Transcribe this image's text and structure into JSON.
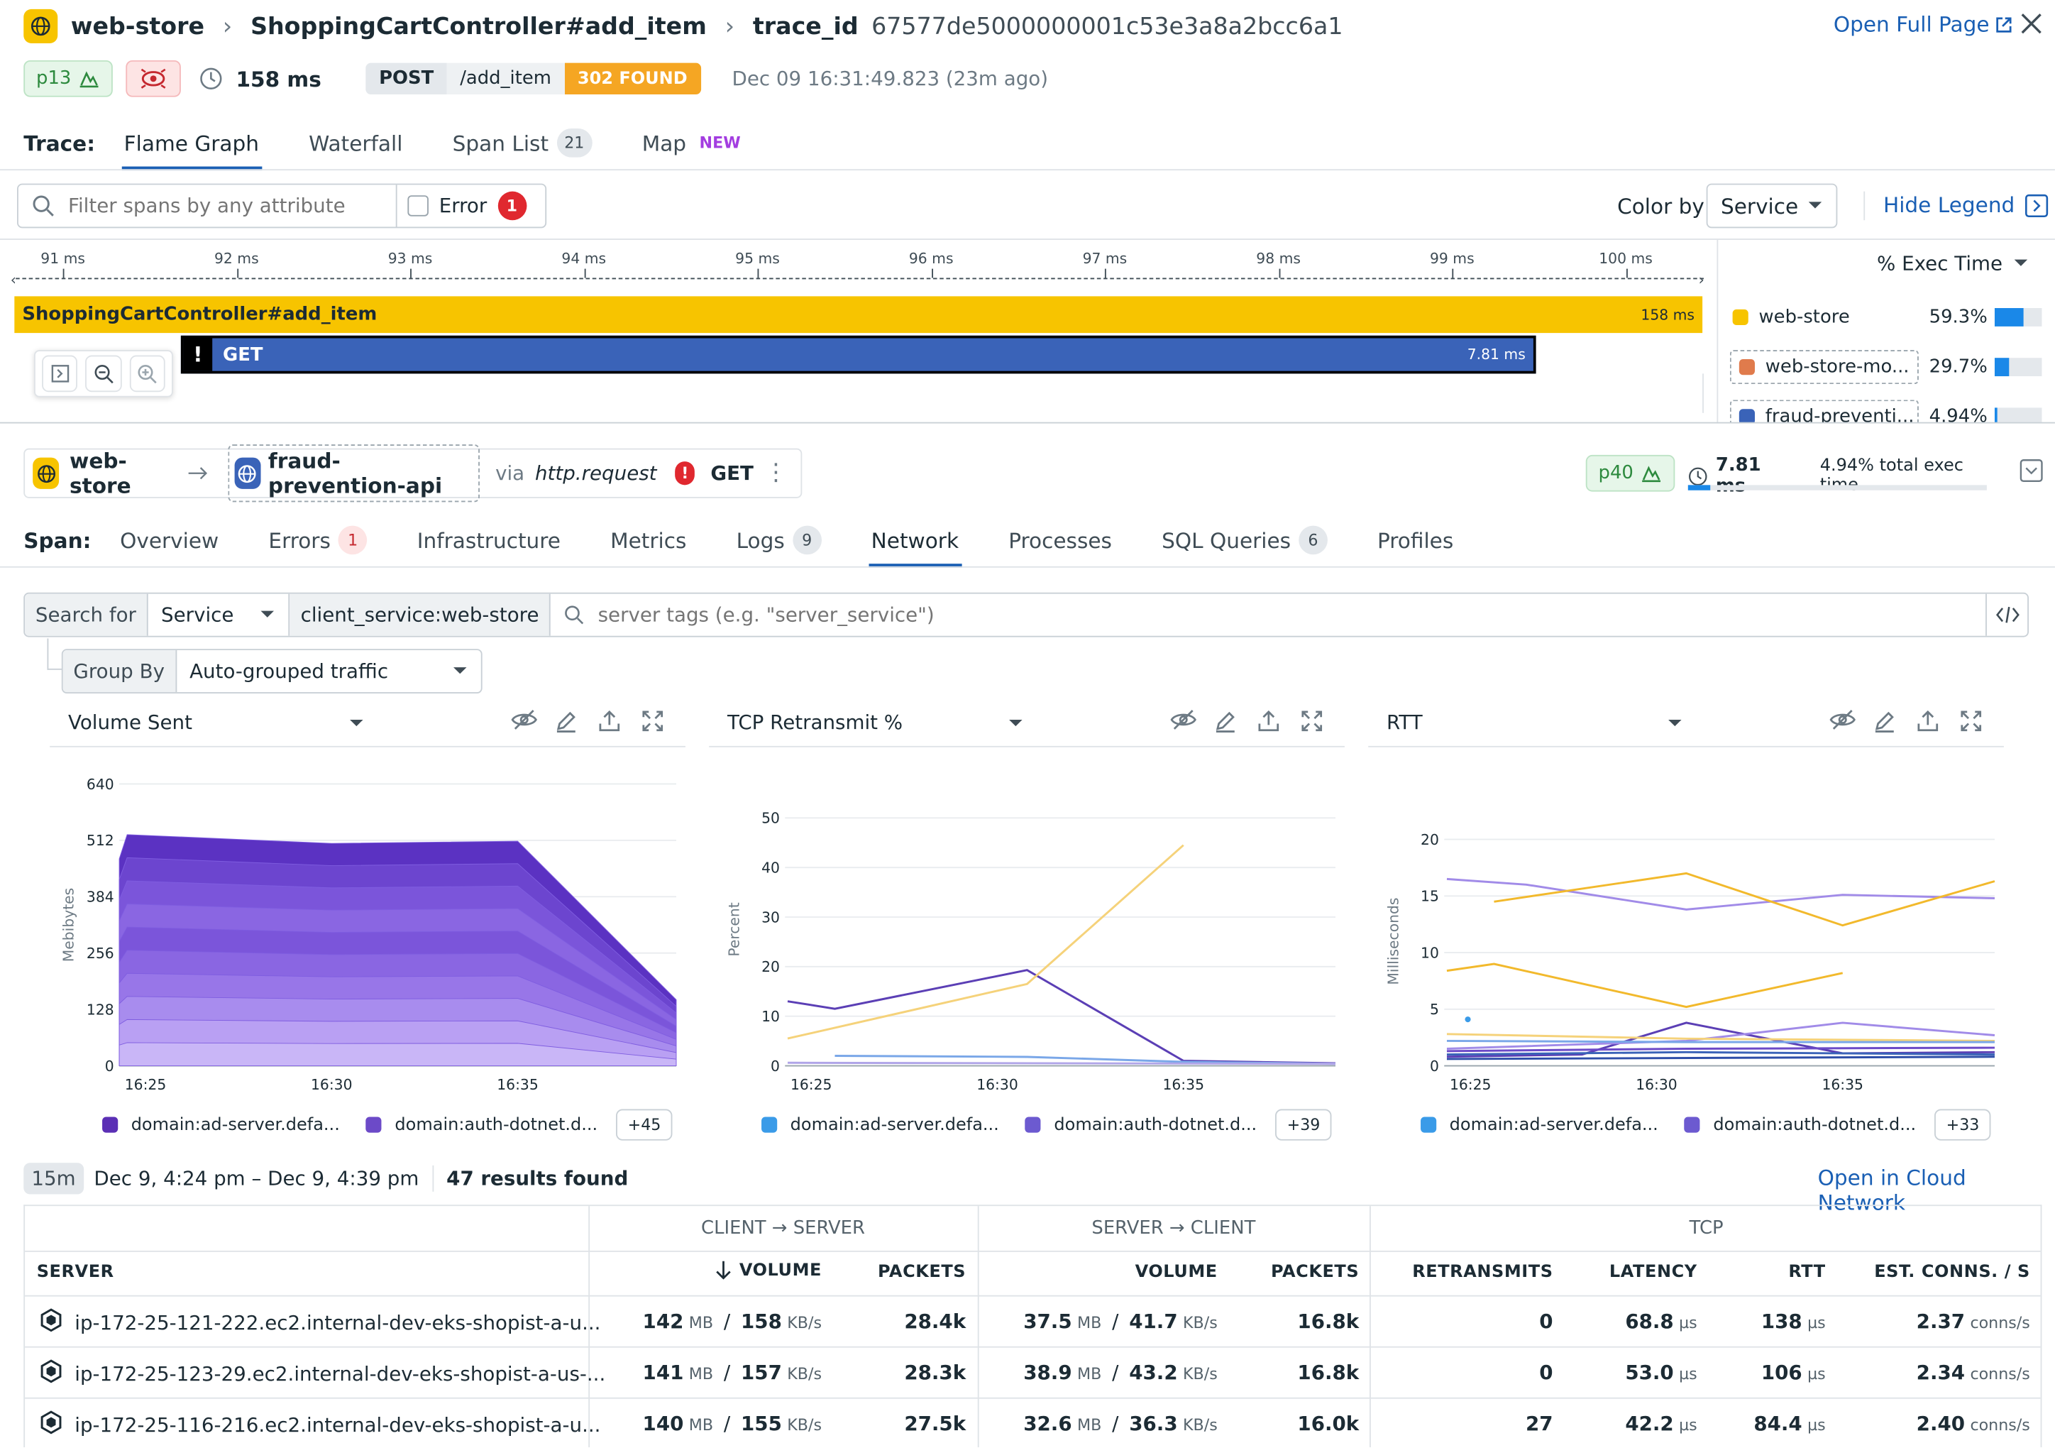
{
  "header": {
    "service": "web-store",
    "resource": "ShoppingCartController#add_item",
    "trace_id_label": "trace_id",
    "trace_id": "67577de5000000001c53e3a8a2bcc6a1",
    "open_full_page": "Open Full Page",
    "percentile": "p13",
    "duration": "158 ms",
    "method": "POST",
    "path": "/add_item",
    "status": "302 FOUND",
    "timestamp": "Dec 09 16:31:49.823 (23m ago)"
  },
  "trace_tabs": {
    "label": "Trace:",
    "items": [
      {
        "label": "Flame Graph",
        "active": true
      },
      {
        "label": "Waterfall"
      },
      {
        "label": "Span List",
        "count": "21"
      },
      {
        "label": "Map",
        "badge": "NEW"
      }
    ]
  },
  "filter": {
    "placeholder": "Filter spans by any attribute",
    "error_label": "Error",
    "error_count": "1",
    "color_by_label": "Color by",
    "color_by_value": "Service",
    "hide_legend": "Hide Legend"
  },
  "timeline": {
    "ticks": [
      "91 ms",
      "92 ms",
      "93 ms",
      "94 ms",
      "95 ms",
      "96 ms",
      "97 ms",
      "98 ms",
      "99 ms",
      "100 ms"
    ],
    "span_root": {
      "label": "ShoppingCartController#add_item",
      "duration": "158 ms",
      "color": "#f7c400"
    },
    "span_child": {
      "label": "GET",
      "duration": "7.81 ms",
      "color": "#3a63b8"
    }
  },
  "legend": {
    "header": "% Exec Time",
    "items": [
      {
        "name": "web-store",
        "pct": "59.3%",
        "color": "#f7c400",
        "fill": 0.593
      },
      {
        "name": "web-store-mo...",
        "pct": "29.7%",
        "color": "#e07b4c",
        "fill": 0.297
      },
      {
        "name": "fraud-preventi...",
        "pct": "4.94%",
        "color": "#3a63b8",
        "fill": 0.0494
      }
    ]
  },
  "span": {
    "from": "web-store",
    "to": "fraud-prevention-api",
    "via": "via",
    "op": "http.request",
    "method": "GET",
    "percentile": "p40",
    "duration": "7.81 ms",
    "exec_time": "4.94% total exec time",
    "exec_fill": 0.0494
  },
  "span_tabs": {
    "label": "Span:",
    "items": [
      {
        "label": "Overview"
      },
      {
        "label": "Errors",
        "count": "1",
        "red": true
      },
      {
        "label": "Infrastructure"
      },
      {
        "label": "Metrics"
      },
      {
        "label": "Logs",
        "count": "9"
      },
      {
        "label": "Network",
        "active": true
      },
      {
        "label": "Processes"
      },
      {
        "label": "SQL Queries",
        "count": "6"
      },
      {
        "label": "Profiles"
      }
    ]
  },
  "search": {
    "label": "Search for",
    "scope": "Service",
    "tag": "client_service:web-store",
    "placeholder": "server tags (e.g. \"server_service\")",
    "group_by_label": "Group By",
    "group_by_value": "Auto-grouped traffic"
  },
  "widgets": [
    {
      "title": "Volume Sent",
      "legend": [
        "domain:ad-server.defa...",
        "domain:auth-dotnet.d..."
      ],
      "more": "+45",
      "legend_colors": [
        "#5b2fb5",
        "#6c4ac8"
      ]
    },
    {
      "title": "TCP Retransmit %",
      "legend": [
        "domain:ad-server.defa...",
        "domain:auth-dotnet.d..."
      ],
      "more": "+39",
      "legend_colors": [
        "#3a9be8",
        "#6c5ad0"
      ]
    },
    {
      "title": "RTT",
      "legend": [
        "domain:ad-server.defa...",
        "domain:auth-dotnet.d..."
      ],
      "more": "+33",
      "legend_colors": [
        "#3a9be8",
        "#6c5ad0"
      ]
    }
  ],
  "chart_data": [
    {
      "type": "area",
      "title": "Volume Sent",
      "ylabel": "Mebibytes",
      "x": [
        "16:23",
        "16:25",
        "16:30",
        "16:35",
        "16:38"
      ],
      "xticks": [
        "16:25",
        "16:30",
        "16:35"
      ],
      "yticks": [
        "0",
        "128",
        "256",
        "384",
        "512",
        "640"
      ],
      "ylim": [
        0,
        640
      ],
      "series": [
        {
          "values": [
            470,
            525,
            505,
            510,
            150
          ]
        }
      ]
    },
    {
      "type": "line",
      "title": "TCP Retransmit %",
      "ylabel": "Percent",
      "xticks": [
        "16:25",
        "16:30",
        "16:35"
      ],
      "yticks": [
        "0",
        "10",
        "20",
        "30",
        "40",
        "50"
      ],
      "ylim": [
        0,
        55
      ],
      "series": [
        {
          "color": "#5b3fb5",
          "points": [
            [
              0,
              13
            ],
            [
              0.1,
              11.5
            ],
            [
              0.58,
              19.3
            ],
            [
              1,
              1
            ],
            [
              1.3,
              0.5
            ]
          ]
        },
        {
          "color": "#f5d27a",
          "points": [
            [
              0,
              5.5
            ],
            [
              0.58,
              16.5
            ],
            [
              1.0,
              44.5
            ]
          ]
        },
        {
          "color": "#7aa7e8",
          "points": [
            [
              0.1,
              2
            ],
            [
              0.58,
              1.8
            ],
            [
              1,
              0.8
            ],
            [
              1.3,
              0.4
            ]
          ]
        },
        {
          "color": "#b0a5e8",
          "points": [
            [
              0,
              0.6
            ],
            [
              1.3,
              0.4
            ]
          ]
        }
      ]
    },
    {
      "type": "line",
      "title": "RTT",
      "ylabel": "Milliseconds",
      "xticks": [
        "16:25",
        "16:30",
        "16:35"
      ],
      "yticks": [
        "0",
        "5",
        "10",
        "15",
        "20"
      ],
      "ylim": [
        0,
        22
      ],
      "series": [
        {
          "color": "#a18be8",
          "points": [
            [
              0,
              16.5
            ],
            [
              0.15,
              16
            ],
            [
              0.58,
              13.8
            ],
            [
              1,
              15.1
            ],
            [
              1.3,
              14.8
            ]
          ]
        },
        {
          "color": "#f2b92c",
          "points": [
            [
              0.1,
              14.5
            ],
            [
              0.58,
              17
            ],
            [
              1,
              12.4
            ],
            [
              1.3,
              16.3
            ]
          ]
        },
        {
          "color": "#f2b92c",
          "points": [
            [
              0,
              8.4
            ],
            [
              0.1,
              9
            ],
            [
              0.58,
              5.2
            ],
            [
              1,
              8.2
            ]
          ]
        },
        {
          "color": "#5b3fb5",
          "points": [
            [
              0,
              0.8
            ],
            [
              0.3,
              1
            ],
            [
              0.58,
              3.8
            ],
            [
              1,
              1.1
            ],
            [
              1.3,
              1.2
            ]
          ]
        },
        {
          "color": "#a18be8",
          "points": [
            [
              0,
              1.5
            ],
            [
              0.58,
              2.2
            ],
            [
              1,
              3.8
            ],
            [
              1.3,
              2.7
            ]
          ]
        },
        {
          "color": "#f5d27a",
          "points": [
            [
              0,
              2.8
            ],
            [
              0.58,
              2.4
            ],
            [
              1.3,
              2.2
            ]
          ]
        },
        {
          "color": "#7aa7e8",
          "points": [
            [
              0,
              2.2
            ],
            [
              0.58,
              2.1
            ],
            [
              1.3,
              2.1
            ]
          ]
        },
        {
          "color": "#3a63b8",
          "points": [
            [
              0,
              1.0
            ],
            [
              0.58,
              1.2
            ],
            [
              1.3,
              1.0
            ]
          ]
        },
        {
          "color": "#6c4ac8",
          "points": [
            [
              0,
              1.3
            ],
            [
              0.58,
              1.5
            ],
            [
              1.3,
              1.6
            ]
          ]
        },
        {
          "color": "#2d4da8",
          "points": [
            [
              0,
              0.6
            ],
            [
              1.3,
              0.8
            ]
          ]
        }
      ]
    }
  ],
  "results": {
    "range_badge": "15m",
    "range": "Dec 9, 4:24 pm – Dec 9, 4:39 pm",
    "count": "47 results found",
    "open_cloud_network": "Open in Cloud Network"
  },
  "table": {
    "group_headers": [
      "CLIENT → SERVER",
      "SERVER → CLIENT",
      "TCP"
    ],
    "columns": [
      "SERVER",
      "VOLUME",
      "PACKETS",
      "VOLUME",
      "PACKETS",
      "RETRANSMITS",
      "LATENCY",
      "RTT",
      "EST. CONNS. / S"
    ],
    "rows": [
      {
        "server": "ip-172-25-121-222.ec2.internal-dev-eks-shopist-a-u...",
        "cs_vol": "142",
        "cs_vol_u": "MB",
        "cs_rate": "158",
        "cs_rate_u": "KB/s",
        "cs_pkts": "28.4k",
        "sc_vol": "37.5",
        "sc_vol_u": "MB",
        "sc_rate": "41.7",
        "sc_rate_u": "KB/s",
        "sc_pkts": "16.8k",
        "retrans": "0",
        "lat": "68.8",
        "lat_u": "µs",
        "rtt": "138",
        "rtt_u": "µs",
        "conns": "2.37",
        "conns_u": "conns/s"
      },
      {
        "server": "ip-172-25-123-29.ec2.internal-dev-eks-shopist-a-us-...",
        "cs_vol": "141",
        "cs_vol_u": "MB",
        "cs_rate": "157",
        "cs_rate_u": "KB/s",
        "cs_pkts": "28.3k",
        "sc_vol": "38.9",
        "sc_vol_u": "MB",
        "sc_rate": "43.2",
        "sc_rate_u": "KB/s",
        "sc_pkts": "16.8k",
        "retrans": "0",
        "lat": "53.0",
        "lat_u": "µs",
        "rtt": "106",
        "rtt_u": "µs",
        "conns": "2.34",
        "conns_u": "conns/s"
      },
      {
        "server": "ip-172-25-116-216.ec2.internal-dev-eks-shopist-a-u...",
        "cs_vol": "140",
        "cs_vol_u": "MB",
        "cs_rate": "155",
        "cs_rate_u": "KB/s",
        "cs_pkts": "27.5k",
        "sc_vol": "32.6",
        "sc_vol_u": "MB",
        "sc_rate": "36.3",
        "sc_rate_u": "KB/s",
        "sc_pkts": "16.0k",
        "retrans": "27",
        "lat": "42.2",
        "lat_u": "µs",
        "rtt": "84.4",
        "rtt_u": "µs",
        "conns": "2.40",
        "conns_u": "conns/s"
      }
    ]
  }
}
